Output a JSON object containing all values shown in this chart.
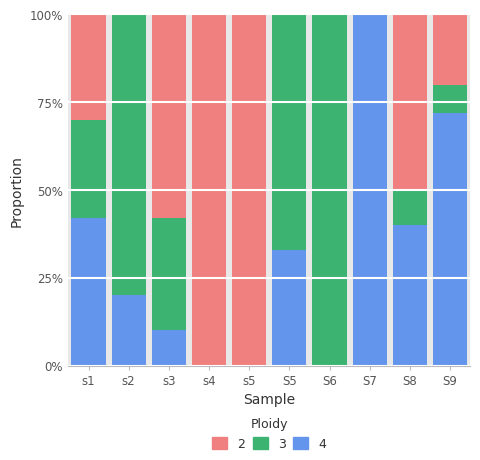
{
  "samples": [
    "s1",
    "s2",
    "s3",
    "s4",
    "s5",
    "S5",
    "S6",
    "S7",
    "S8",
    "S9"
  ],
  "ploidy_2": [
    0.3,
    0.0,
    0.58,
    1.0,
    1.0,
    0.0,
    0.0,
    0.0,
    0.5,
    0.2
  ],
  "ploidy_3": [
    0.28,
    0.8,
    0.32,
    0.0,
    0.0,
    0.67,
    1.0,
    0.0,
    0.1,
    0.08
  ],
  "ploidy_4": [
    0.42,
    0.2,
    0.1,
    0.0,
    0.0,
    0.33,
    0.0,
    1.0,
    0.4,
    0.72
  ],
  "color_2": "#F08080",
  "color_3": "#3CB371",
  "color_4": "#6495ED",
  "xlabel": "Sample",
  "ylabel": "Proportion",
  "yticks": [
    0,
    0.25,
    0.5,
    0.75,
    1.0
  ],
  "ytick_labels": [
    "0%",
    "25%",
    "50%",
    "75%",
    "100%"
  ],
  "background_color": "#FFFFFF",
  "panel_background": "#E8E8E8",
  "grid_color": "#FFFFFF",
  "bar_width": 0.85,
  "legend_title": "Ploidy",
  "legend_labels": [
    "2",
    "3",
    "4"
  ]
}
